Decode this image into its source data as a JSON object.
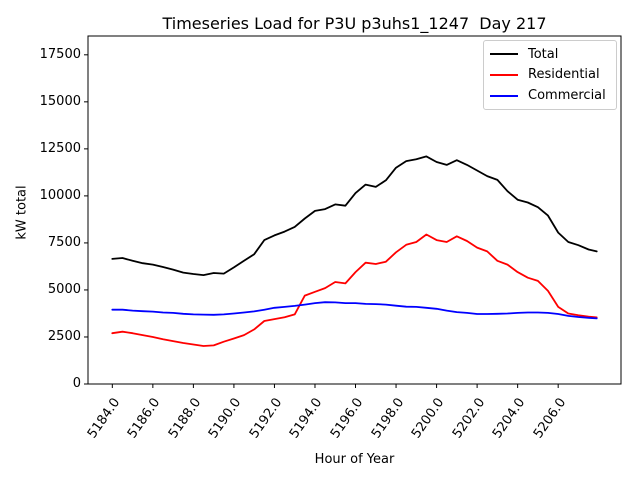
{
  "chart_data": {
    "type": "line",
    "title": "Timeseries Load for P3U p3uhs1_1247  Day 217",
    "xlabel": "Hour of Year",
    "ylabel": "kW total",
    "xlim": [
      5182.8,
      5209.1
    ],
    "ylim": [
      0,
      18500
    ],
    "xticks": [
      5184.0,
      5186.0,
      5188.0,
      5190.0,
      5192.0,
      5194.0,
      5196.0,
      5198.0,
      5200.0,
      5202.0,
      5204.0,
      5206.0
    ],
    "xtick_labels": [
      "5184.0",
      "5186.0",
      "5188.0",
      "5190.0",
      "5192.0",
      "5194.0",
      "5196.0",
      "5198.0",
      "5200.0",
      "5202.0",
      "5204.0",
      "5206.0"
    ],
    "yticks": [
      0,
      2500,
      5000,
      7500,
      10000,
      12500,
      15000,
      17500
    ],
    "grid": false,
    "legend_position": "upper right",
    "x": [
      5184.0,
      5184.5,
      5185.0,
      5185.5,
      5186.0,
      5186.5,
      5187.0,
      5187.5,
      5188.0,
      5188.5,
      5189.0,
      5189.5,
      5190.0,
      5190.5,
      5191.0,
      5191.5,
      5192.0,
      5192.5,
      5193.0,
      5193.5,
      5194.0,
      5194.5,
      5195.0,
      5195.5,
      5196.0,
      5196.5,
      5197.0,
      5197.5,
      5198.0,
      5198.5,
      5199.0,
      5199.5,
      5200.0,
      5200.5,
      5201.0,
      5201.5,
      5202.0,
      5202.5,
      5203.0,
      5203.5,
      5204.0,
      5204.5,
      5205.0,
      5205.5,
      5206.0,
      5206.5,
      5207.0,
      5207.5,
      5207.9
    ],
    "series": [
      {
        "name": "Total",
        "color": "#000000",
        "values": [
          6650,
          6700,
          6550,
          6420,
          6350,
          6220,
          6080,
          5920,
          5850,
          5790,
          5900,
          5870,
          6200,
          6550,
          6900,
          7650,
          7900,
          8100,
          8350,
          8800,
          9200,
          9300,
          9550,
          9480,
          10150,
          10600,
          10480,
          10830,
          11500,
          11850,
          11950,
          12100,
          11800,
          11650,
          11900,
          11650,
          11350,
          11050,
          10850,
          10250,
          9800,
          9650,
          9400,
          8950,
          8050,
          7550,
          7380,
          7150,
          7050
        ]
      },
      {
        "name": "Residential",
        "color": "#ff0000",
        "values": [
          2700,
          2780,
          2700,
          2600,
          2500,
          2380,
          2280,
          2180,
          2100,
          2020,
          2050,
          2250,
          2420,
          2600,
          2900,
          3350,
          3450,
          3550,
          3700,
          4700,
          4900,
          5100,
          5420,
          5350,
          5950,
          6450,
          6380,
          6500,
          7000,
          7400,
          7550,
          7950,
          7650,
          7550,
          7850,
          7600,
          7250,
          7050,
          6550,
          6350,
          5950,
          5650,
          5480,
          4950,
          4100,
          3750,
          3650,
          3580,
          3540
        ]
      },
      {
        "name": "Commercial",
        "color": "#0000ff",
        "values": [
          3950,
          3950,
          3900,
          3870,
          3850,
          3800,
          3780,
          3730,
          3700,
          3690,
          3680,
          3700,
          3750,
          3800,
          3860,
          3950,
          4050,
          4100,
          4150,
          4220,
          4300,
          4350,
          4340,
          4300,
          4300,
          4260,
          4250,
          4220,
          4160,
          4110,
          4100,
          4050,
          4000,
          3900,
          3820,
          3780,
          3720,
          3720,
          3730,
          3750,
          3780,
          3800,
          3800,
          3780,
          3720,
          3620,
          3560,
          3520,
          3490
        ]
      }
    ]
  }
}
